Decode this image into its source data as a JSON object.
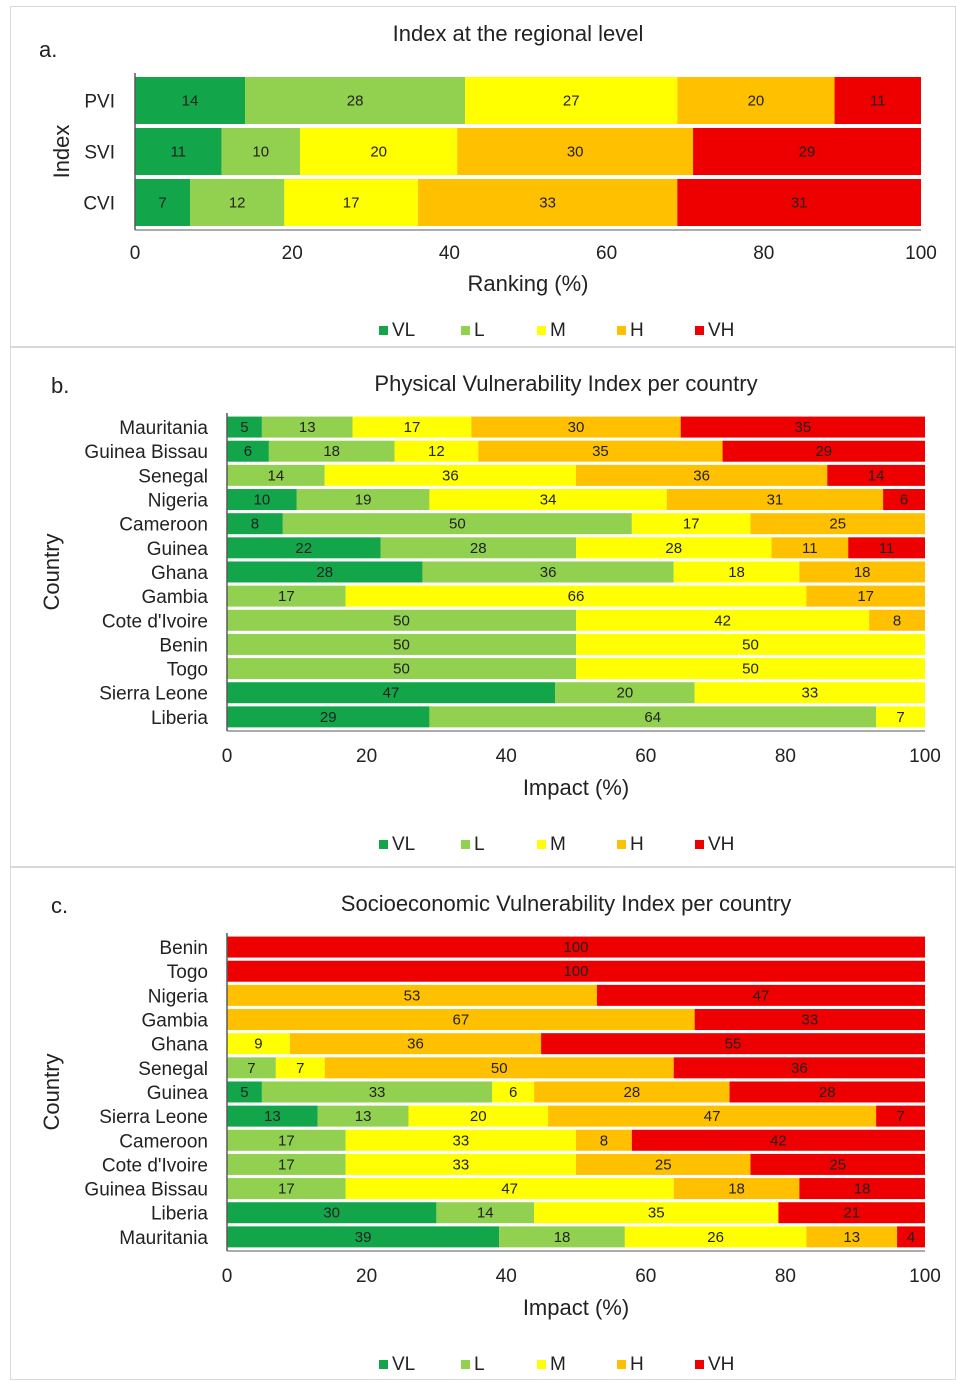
{
  "colors": {
    "VL": "#13a54a",
    "L": "#92d050",
    "M": "#ffff00",
    "H": "#ffc000",
    "VH": "#ee0000",
    "axis": "#595959"
  },
  "legend_labels": [
    "VL",
    "L",
    "M",
    "H",
    "VH"
  ],
  "chart_data": [
    {
      "type": "bar",
      "orientation": "horizontal",
      "stacked": true,
      "panel_letter": "a.",
      "title": "Index at the regional level",
      "xlabel": "Ranking (%)",
      "ylabel": "Index",
      "xlim": [
        0,
        100
      ],
      "xticks": [
        "0",
        "20",
        "40",
        "60",
        "80",
        "100"
      ],
      "legend_position": "bottom",
      "categories": [
        "PVI",
        "SVI",
        "CVI"
      ],
      "series": [
        {
          "name": "VL",
          "values": [
            14,
            11,
            7
          ]
        },
        {
          "name": "L",
          "values": [
            28,
            10,
            12
          ]
        },
        {
          "name": "M",
          "values": [
            27,
            20,
            17
          ]
        },
        {
          "name": "H",
          "values": [
            20,
            30,
            33
          ]
        },
        {
          "name": "VH",
          "values": [
            11,
            29,
            31
          ]
        }
      ]
    },
    {
      "type": "bar",
      "orientation": "horizontal",
      "stacked": true,
      "panel_letter": "b.",
      "title": "Physical Vulnerability Index per country",
      "xlabel": "Impact (%)",
      "ylabel": "Country",
      "xlim": [
        0,
        100
      ],
      "xticks": [
        "0",
        "20",
        "40",
        "60",
        "80",
        "100"
      ],
      "legend_position": "bottom",
      "categories": [
        "Mauritania",
        "Guinea Bissau",
        "Senegal",
        "Nigeria",
        "Cameroon",
        "Guinea",
        "Ghana",
        "Gambia",
        "Cote d'Ivoire",
        "Benin",
        "Togo",
        "Sierra Leone",
        "Liberia"
      ],
      "series": [
        {
          "name": "VL",
          "values": [
            5,
            6,
            0,
            10,
            8,
            22,
            28,
            0,
            0,
            0,
            0,
            47,
            29
          ]
        },
        {
          "name": "L",
          "values": [
            13,
            18,
            14,
            19,
            50,
            28,
            36,
            17,
            50,
            50,
            50,
            20,
            64
          ]
        },
        {
          "name": "M",
          "values": [
            17,
            12,
            36,
            34,
            17,
            28,
            18,
            66,
            42,
            50,
            50,
            33,
            7
          ]
        },
        {
          "name": "H",
          "values": [
            30,
            35,
            36,
            31,
            25,
            11,
            18,
            17,
            8,
            0,
            0,
            0,
            0
          ]
        },
        {
          "name": "VH",
          "values": [
            35,
            29,
            14,
            6,
            0,
            11,
            0,
            0,
            0,
            0,
            0,
            0,
            0
          ]
        }
      ]
    },
    {
      "type": "bar",
      "orientation": "horizontal",
      "stacked": true,
      "panel_letter": "c.",
      "title": "Socioeconomic Vulnerability Index per country",
      "xlabel": "Impact (%)",
      "ylabel": "Country",
      "xlim": [
        0,
        100
      ],
      "xticks": [
        "0",
        "20",
        "40",
        "60",
        "80",
        "100"
      ],
      "legend_position": "bottom",
      "categories": [
        "Benin",
        "Togo",
        "Nigeria",
        "Gambia",
        "Ghana",
        "Senegal",
        "Guinea",
        "Sierra Leone",
        "Cameroon",
        "Cote d'Ivoire",
        "Guinea Bissau",
        "Liberia",
        "Mauritania"
      ],
      "series": [
        {
          "name": "VL",
          "values": [
            0,
            0,
            0,
            0,
            0,
            0,
            5,
            13,
            0,
            0,
            0,
            30,
            39
          ]
        },
        {
          "name": "L",
          "values": [
            0,
            0,
            0,
            0,
            0,
            7,
            33,
            13,
            17,
            17,
            17,
            14,
            18
          ]
        },
        {
          "name": "M",
          "values": [
            0,
            0,
            0,
            0,
            9,
            7,
            6,
            20,
            33,
            33,
            47,
            35,
            26
          ]
        },
        {
          "name": "H",
          "values": [
            0,
            0,
            53,
            67,
            36,
            50,
            28,
            47,
            8,
            25,
            18,
            0,
            13
          ]
        },
        {
          "name": "VH",
          "values": [
            100,
            100,
            47,
            33,
            55,
            36,
            28,
            7,
            42,
            25,
            18,
            21,
            4
          ]
        }
      ]
    }
  ]
}
